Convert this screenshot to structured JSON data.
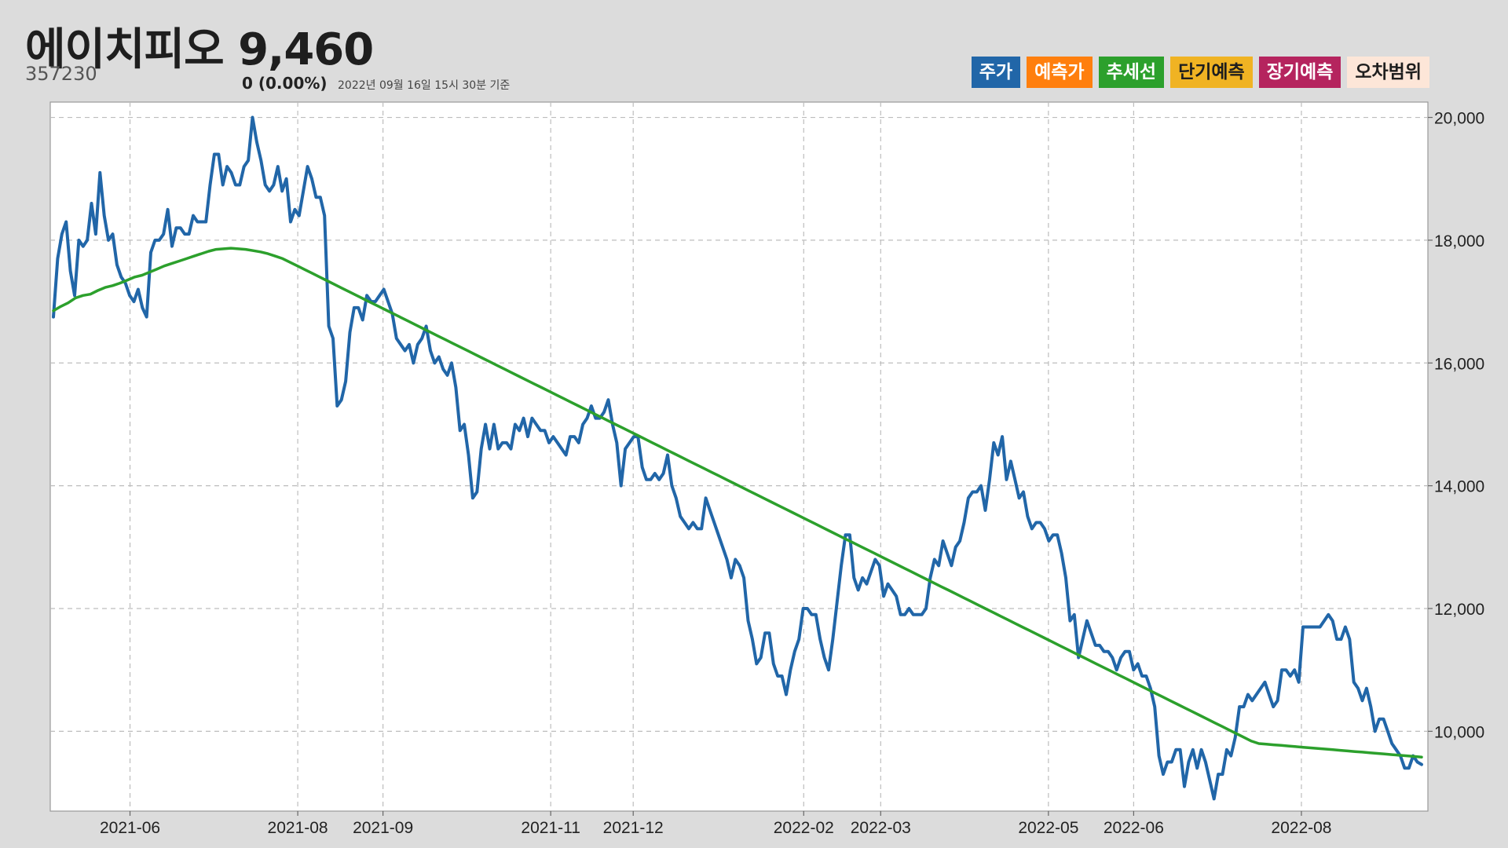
{
  "header": {
    "title": "에이치피오 9,460",
    "code": "357230",
    "change": "0 (0.00%)",
    "as_of": "2022년 09월 16일 15시 30분 기준"
  },
  "legend": [
    {
      "label": "주가",
      "color": "#2166a8",
      "text_color": "#ffffff"
    },
    {
      "label": "예측가",
      "color": "#ff7f0e",
      "text_color": "#ffffff"
    },
    {
      "label": "추세선",
      "color": "#2ca02c",
      "text_color": "#ffffff"
    },
    {
      "label": "단기예측",
      "color": "#f0b323",
      "text_color": "#1e1e1e"
    },
    {
      "label": "장기예측",
      "color": "#b5245e",
      "text_color": "#ffffff"
    },
    {
      "label": "오차범위",
      "color": "#fde6d8",
      "text_color": "#1e1e1e"
    }
  ],
  "chart_data": {
    "type": "line",
    "x_start": "2021-05-03",
    "x_end": "2022-09-16",
    "x_ticks": [
      "2021-06",
      "2021-08",
      "2021-09",
      "2021-11",
      "2021-12",
      "2022-02",
      "2022-03",
      "2022-05",
      "2022-06",
      "2022-08"
    ],
    "y_ticks": [
      "10,000",
      "12,000",
      "14,000",
      "16,000",
      "18,000",
      "20,000"
    ],
    "ylim": [
      8700,
      20250
    ],
    "grid": true,
    "legend_position": "top-right",
    "series": [
      {
        "name": "주가",
        "color": "#2166a8",
        "values": [
          16750,
          17700,
          18100,
          18300,
          17500,
          17100,
          18000,
          17900,
          18000,
          18600,
          18100,
          19100,
          18400,
          18000,
          18100,
          17600,
          17400,
          17300,
          17100,
          17000,
          17200,
          16900,
          16750,
          17800,
          18000,
          18000,
          18100,
          18500,
          17900,
          18200,
          18200,
          18100,
          18100,
          18400,
          18300,
          18300,
          18300,
          18900,
          19400,
          19400,
          18900,
          19200,
          19100,
          18900,
          18900,
          19200,
          19300,
          20000,
          19600,
          19300,
          18900,
          18800,
          18900,
          19200,
          18800,
          19000,
          18300,
          18500,
          18400,
          18800,
          19200,
          19000,
          18700,
          18700,
          18400,
          16600,
          16400,
          15300,
          15400,
          15700,
          16500,
          16900,
          16900,
          16700,
          17100,
          17000,
          17000,
          17100,
          17200,
          17000,
          16800,
          16400,
          16300,
          16200,
          16300,
          16000,
          16300,
          16400,
          16600,
          16200,
          16000,
          16100,
          15900,
          15800,
          16000,
          15600,
          14900,
          15000,
          14500,
          13800,
          13900,
          14600,
          15000,
          14600,
          15000,
          14600,
          14700,
          14700,
          14600,
          15000,
          14900,
          15100,
          14800,
          15100,
          15000,
          14900,
          14900,
          14700,
          14800,
          14700,
          14600,
          14500,
          14800,
          14800,
          14700,
          15000,
          15100,
          15300,
          15100,
          15100,
          15200,
          15400,
          15000,
          14700,
          14000,
          14600,
          14700,
          14800,
          14800,
          14300,
          14100,
          14100,
          14200,
          14100,
          14200,
          14500,
          14000,
          13800,
          13500,
          13400,
          13300,
          13400,
          13300,
          13300,
          13800,
          13600,
          13400,
          13200,
          13000,
          12800,
          12500,
          12800,
          12700,
          12500,
          11800,
          11500,
          11100,
          11200,
          11600,
          11600,
          11100,
          10900,
          10900,
          10600,
          11000,
          11300,
          11500,
          12000,
          12000,
          11900,
          11900,
          11500,
          11200,
          11000,
          11500,
          12100,
          12700,
          13200,
          13200,
          12500,
          12300,
          12500,
          12400,
          12600,
          12800,
          12700,
          12200,
          12400,
          12300,
          12200,
          11900,
          11900,
          12000,
          11900,
          11900,
          11900,
          12000,
          12500,
          12800,
          12700,
          13100,
          12900,
          12700,
          13000,
          13100,
          13400,
          13800,
          13900,
          13900,
          14000,
          13600,
          14100,
          14700,
          14500,
          14800,
          14100,
          14400,
          14100,
          13800,
          13900,
          13500,
          13300,
          13400,
          13400,
          13300,
          13100,
          13200,
          13200,
          12900,
          12500,
          11800,
          11900,
          11200,
          11500,
          11800,
          11600,
          11400,
          11400,
          11300,
          11300,
          11200,
          11000,
          11200,
          11300,
          11300,
          11000,
          11100,
          10900,
          10900,
          10700,
          10400,
          9600,
          9300,
          9500,
          9500,
          9700,
          9700,
          9100,
          9500,
          9700,
          9400,
          9700,
          9500,
          9200,
          8900,
          9300,
          9300,
          9700,
          9600,
          9900,
          10400,
          10400,
          10600,
          10500,
          10600,
          10700,
          10800,
          10600,
          10400,
          10500,
          11000,
          11000,
          10900,
          11000,
          10800,
          11700,
          11700,
          11700,
          11700,
          11700,
          11800,
          11900,
          11800,
          11500,
          11500,
          11700,
          11500,
          10800,
          10700,
          10500,
          10700,
          10400,
          10000,
          10200,
          10200,
          10000,
          9800,
          9700,
          9600,
          9400,
          9400,
          9600,
          9500,
          9460
        ]
      },
      {
        "name": "추세선",
        "color": "#2ca02c",
        "values": [
          16850,
          16920,
          16980,
          17060,
          17100,
          17120,
          17180,
          17230,
          17260,
          17300,
          17350,
          17400,
          17430,
          17480,
          17530,
          17580,
          17620,
          17660,
          17700,
          17740,
          17780,
          17820,
          17850,
          17860,
          17870,
          17860,
          17850,
          17830,
          17810,
          17780,
          17740,
          17700,
          17640,
          17580,
          17520,
          17460,
          17400,
          17340,
          17280,
          17220,
          17160,
          17100,
          17040,
          16980,
          16920,
          16860,
          16800,
          16740,
          16680,
          16620,
          16560,
          16500,
          16440,
          16380,
          16320,
          16260,
          16200,
          16140,
          16080,
          16020,
          15960,
          15900,
          15840,
          15780,
          15720,
          15660,
          15600,
          15540,
          15480,
          15420,
          15360,
          15300,
          15240,
          15180,
          15120,
          15060,
          15000,
          14940,
          14880,
          14820,
          14760,
          14700,
          14640,
          14580,
          14520,
          14460,
          14400,
          14340,
          14280,
          14220,
          14160,
          14100,
          14040,
          13980,
          13920,
          13860,
          13800,
          13740,
          13680,
          13620,
          13560,
          13500,
          13440,
          13380,
          13320,
          13260,
          13200,
          13140,
          13080,
          13020,
          12960,
          12900,
          12840,
          12780,
          12720,
          12660,
          12600,
          12540,
          12480,
          12420,
          12360,
          12300,
          12240,
          12180,
          12120,
          12060,
          12000,
          11940,
          11880,
          11820,
          11760,
          11700,
          11640,
          11580,
          11520,
          11460,
          11400,
          11340,
          11280,
          11220,
          11160,
          11100,
          11040,
          10980,
          10920,
          10860,
          10800,
          10740,
          10680,
          10620,
          10560,
          10500,
          10440,
          10380,
          10320,
          10260,
          10200,
          10140,
          10080,
          10020,
          9960,
          9900,
          9840,
          9800,
          9790,
          9780,
          9770,
          9760,
          9750,
          9740,
          9730,
          9720,
          9710,
          9700,
          9690,
          9680,
          9670,
          9660,
          9650,
          9640,
          9630,
          9620,
          9610,
          9600,
          9590,
          9580
        ]
      }
    ]
  }
}
